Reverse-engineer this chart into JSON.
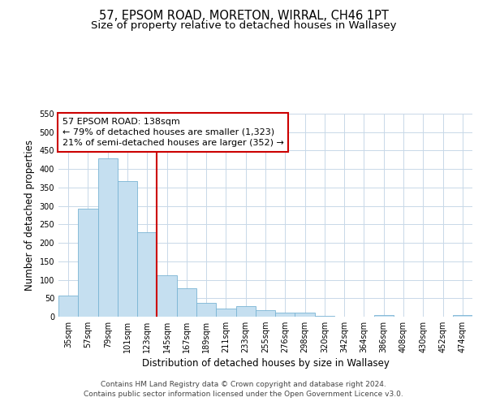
{
  "title": "57, EPSOM ROAD, MORETON, WIRRAL, CH46 1PT",
  "subtitle": "Size of property relative to detached houses in Wallasey",
  "xlabel": "Distribution of detached houses by size in Wallasey",
  "ylabel": "Number of detached properties",
  "bar_labels": [
    "35sqm",
    "57sqm",
    "79sqm",
    "101sqm",
    "123sqm",
    "145sqm",
    "167sqm",
    "189sqm",
    "211sqm",
    "233sqm",
    "255sqm",
    "276sqm",
    "298sqm",
    "320sqm",
    "342sqm",
    "364sqm",
    "386sqm",
    "408sqm",
    "430sqm",
    "452sqm",
    "474sqm"
  ],
  "bar_values": [
    57,
    293,
    428,
    368,
    228,
    113,
    76,
    38,
    22,
    29,
    18,
    10,
    11,
    3,
    0,
    0,
    5,
    0,
    0,
    0,
    4
  ],
  "bar_color": "#c5dff0",
  "bar_edge_color": "#7ab4d4",
  "vline_x": 4.5,
  "vline_color": "#cc0000",
  "annotation_title": "57 EPSOM ROAD: 138sqm",
  "annotation_line1": "← 79% of detached houses are smaller (1,323)",
  "annotation_line2": "21% of semi-detached houses are larger (352) →",
  "annotation_box_facecolor": "#ffffff",
  "annotation_box_edgecolor": "#cc0000",
  "ylim": [
    0,
    550
  ],
  "yticks": [
    0,
    50,
    100,
    150,
    200,
    250,
    300,
    350,
    400,
    450,
    500,
    550
  ],
  "footer_line1": "Contains HM Land Registry data © Crown copyright and database right 2024.",
  "footer_line2": "Contains public sector information licensed under the Open Government Licence v3.0.",
  "bg_color": "#ffffff",
  "grid_color": "#c8d8e8",
  "title_fontsize": 10.5,
  "subtitle_fontsize": 9.5,
  "axis_label_fontsize": 8.5,
  "tick_fontsize": 7,
  "annotation_fontsize": 8,
  "footer_fontsize": 6.5
}
